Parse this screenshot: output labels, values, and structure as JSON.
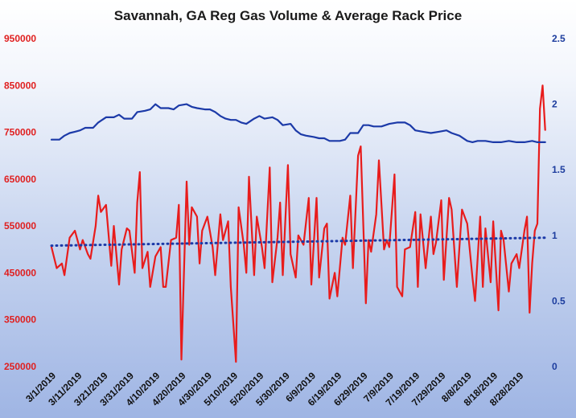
{
  "chart_data": {
    "type": "line",
    "title": "Savannah, GA Reg Gas Volume & Average Rack Price",
    "xlabel": "",
    "ylabel_left": "",
    "ylabel_right": "",
    "ylim_left": [
      250000,
      950000
    ],
    "yticks_left": [
      "950000",
      "850000",
      "750000",
      "650000",
      "550000",
      "450000",
      "350000",
      "250000"
    ],
    "ylim_right": [
      0,
      2.5
    ],
    "yticks_right": [
      "2.5",
      "2",
      "1.5",
      "1",
      "0.5",
      "0"
    ],
    "xticks": [
      "3/1/2019",
      "3/11/2019",
      "3/21/2019",
      "3/31/2019",
      "4/10/2019",
      "4/20/2019",
      "4/30/2019",
      "5/10/2019",
      "5/20/2019",
      "5/30/2019",
      "6/9/2019",
      "6/19/2019",
      "6/29/2019",
      "7/9/2019",
      "7/19/2019",
      "7/29/2019",
      "8/8/2019",
      "8/18/2019",
      "8/28/2019"
    ],
    "x_start": "3/1/2019",
    "x_end": "9/4/2019",
    "background": "gradient",
    "colors": {
      "volume": "#e81c1c",
      "price": "#1c3aa8",
      "trend": "#1c3aa8"
    },
    "series": [
      {
        "key": "volume",
        "axis": "left",
        "style": "solid",
        "points": [
          [
            "3/1/2019",
            505000
          ],
          [
            "3/3/2019",
            460000
          ],
          [
            "3/5/2019",
            470000
          ],
          [
            "3/6/2019",
            445000
          ],
          [
            "3/8/2019",
            525000
          ],
          [
            "3/10/2019",
            540000
          ],
          [
            "3/12/2019",
            500000
          ],
          [
            "3/13/2019",
            520000
          ],
          [
            "3/15/2019",
            490000
          ],
          [
            "3/16/2019",
            480000
          ],
          [
            "3/18/2019",
            550000
          ],
          [
            "3/19/2019",
            615000
          ],
          [
            "3/20/2019",
            580000
          ],
          [
            "3/22/2019",
            595000
          ],
          [
            "3/24/2019",
            465000
          ],
          [
            "3/25/2019",
            550000
          ],
          [
            "3/27/2019",
            425000
          ],
          [
            "3/28/2019",
            500000
          ],
          [
            "3/30/2019",
            545000
          ],
          [
            "3/31/2019",
            540000
          ],
          [
            "4/2/2019",
            450000
          ],
          [
            "4/3/2019",
            600000
          ],
          [
            "4/4/2019",
            665000
          ],
          [
            "4/5/2019",
            460000
          ],
          [
            "4/7/2019",
            495000
          ],
          [
            "4/8/2019",
            420000
          ],
          [
            "4/10/2019",
            485000
          ],
          [
            "4/12/2019",
            505000
          ],
          [
            "4/13/2019",
            420000
          ],
          [
            "4/14/2019",
            420000
          ],
          [
            "4/16/2019",
            520000
          ],
          [
            "4/18/2019",
            525000
          ],
          [
            "4/19/2019",
            595000
          ],
          [
            "4/20/2019",
            265000
          ],
          [
            "4/22/2019",
            645000
          ],
          [
            "4/23/2019",
            510000
          ],
          [
            "4/24/2019",
            590000
          ],
          [
            "4/26/2019",
            570000
          ],
          [
            "4/27/2019",
            470000
          ],
          [
            "4/28/2019",
            540000
          ],
          [
            "4/30/2019",
            570000
          ],
          [
            "5/2/2019",
            505000
          ],
          [
            "5/3/2019",
            445000
          ],
          [
            "5/5/2019",
            575000
          ],
          [
            "5/6/2019",
            520000
          ],
          [
            "5/8/2019",
            560000
          ],
          [
            "5/9/2019",
            420000
          ],
          [
            "5/11/2019",
            260000
          ],
          [
            "5/12/2019",
            590000
          ],
          [
            "5/14/2019",
            510000
          ],
          [
            "5/15/2019",
            450000
          ],
          [
            "5/16/2019",
            655000
          ],
          [
            "5/18/2019",
            445000
          ],
          [
            "5/19/2019",
            570000
          ],
          [
            "5/21/2019",
            505000
          ],
          [
            "5/22/2019",
            460000
          ],
          [
            "5/24/2019",
            675000
          ],
          [
            "5/25/2019",
            430000
          ],
          [
            "5/27/2019",
            525000
          ],
          [
            "5/28/2019",
            600000
          ],
          [
            "5/29/2019",
            445000
          ],
          [
            "5/31/2019",
            680000
          ],
          [
            "6/1/2019",
            490000
          ],
          [
            "6/3/2019",
            440000
          ],
          [
            "6/4/2019",
            530000
          ],
          [
            "6/6/2019",
            510000
          ],
          [
            "6/8/2019",
            610000
          ],
          [
            "6/9/2019",
            425000
          ],
          [
            "6/11/2019",
            610000
          ],
          [
            "6/12/2019",
            440000
          ],
          [
            "6/14/2019",
            545000
          ],
          [
            "6/15/2019",
            555000
          ],
          [
            "6/16/2019",
            395000
          ],
          [
            "6/18/2019",
            450000
          ],
          [
            "6/19/2019",
            400000
          ],
          [
            "6/21/2019",
            525000
          ],
          [
            "6/22/2019",
            510000
          ],
          [
            "6/24/2019",
            615000
          ],
          [
            "6/25/2019",
            460000
          ],
          [
            "6/27/2019",
            700000
          ],
          [
            "6/28/2019",
            720000
          ],
          [
            "6/30/2019",
            385000
          ],
          [
            "7/1/2019",
            520000
          ],
          [
            "7/2/2019",
            495000
          ],
          [
            "7/4/2019",
            575000
          ],
          [
            "7/5/2019",
            690000
          ],
          [
            "7/7/2019",
            500000
          ],
          [
            "7/8/2019",
            520000
          ],
          [
            "7/9/2019",
            505000
          ],
          [
            "7/11/2019",
            660000
          ],
          [
            "7/12/2019",
            420000
          ],
          [
            "7/14/2019",
            400000
          ],
          [
            "7/15/2019",
            500000
          ],
          [
            "7/17/2019",
            505000
          ],
          [
            "7/19/2019",
            580000
          ],
          [
            "7/20/2019",
            420000
          ],
          [
            "7/21/2019",
            575000
          ],
          [
            "7/23/2019",
            460000
          ],
          [
            "7/25/2019",
            570000
          ],
          [
            "7/26/2019",
            490000
          ],
          [
            "7/27/2019",
            515000
          ],
          [
            "7/29/2019",
            605000
          ],
          [
            "7/30/2019",
            435000
          ],
          [
            "8/1/2019",
            610000
          ],
          [
            "8/2/2019",
            585000
          ],
          [
            "8/4/2019",
            420000
          ],
          [
            "8/5/2019",
            505000
          ],
          [
            "8/6/2019",
            585000
          ],
          [
            "8/8/2019",
            555000
          ],
          [
            "8/10/2019",
            440000
          ],
          [
            "8/11/2019",
            390000
          ],
          [
            "8/13/2019",
            570000
          ],
          [
            "8/14/2019",
            420000
          ],
          [
            "8/15/2019",
            545000
          ],
          [
            "8/17/2019",
            430000
          ],
          [
            "8/18/2019",
            560000
          ],
          [
            "8/20/2019",
            370000
          ],
          [
            "8/21/2019",
            540000
          ],
          [
            "8/22/2019",
            520000
          ],
          [
            "8/24/2019",
            410000
          ],
          [
            "8/25/2019",
            470000
          ],
          [
            "8/27/2019",
            490000
          ],
          [
            "8/28/2019",
            460000
          ],
          [
            "8/30/2019",
            540000
          ],
          [
            "8/31/2019",
            570000
          ],
          [
            "9/1/2019",
            365000
          ],
          [
            "9/2/2019",
            470000
          ],
          [
            "9/3/2019",
            540000
          ],
          [
            "9/4/2019",
            555000
          ],
          [
            "9/5/2019",
            800000
          ],
          [
            "9/6/2019",
            850000
          ],
          [
            "9/7/2019",
            755000
          ]
        ]
      },
      {
        "key": "price",
        "axis": "right",
        "style": "solid",
        "points": [
          [
            "3/1/2019",
            1.73
          ],
          [
            "3/4/2019",
            1.73
          ],
          [
            "3/6/2019",
            1.76
          ],
          [
            "3/8/2019",
            1.78
          ],
          [
            "3/10/2019",
            1.79
          ],
          [
            "3/12/2019",
            1.8
          ],
          [
            "3/14/2019",
            1.82
          ],
          [
            "3/17/2019",
            1.82
          ],
          [
            "3/19/2019",
            1.86
          ],
          [
            "3/22/2019",
            1.9
          ],
          [
            "3/25/2019",
            1.9
          ],
          [
            "3/27/2019",
            1.92
          ],
          [
            "3/29/2019",
            1.89
          ],
          [
            "4/1/2019",
            1.89
          ],
          [
            "4/3/2019",
            1.94
          ],
          [
            "4/6/2019",
            1.95
          ],
          [
            "4/8/2019",
            1.96
          ],
          [
            "4/10/2019",
            2.0
          ],
          [
            "4/12/2019",
            1.97
          ],
          [
            "4/15/2019",
            1.97
          ],
          [
            "4/17/2019",
            1.96
          ],
          [
            "4/19/2019",
            1.99
          ],
          [
            "4/22/2019",
            2.0
          ],
          [
            "4/24/2019",
            1.98
          ],
          [
            "4/26/2019",
            1.97
          ],
          [
            "4/29/2019",
            1.96
          ],
          [
            "5/1/2019",
            1.96
          ],
          [
            "5/3/2019",
            1.94
          ],
          [
            "5/5/2019",
            1.91
          ],
          [
            "5/7/2019",
            1.89
          ],
          [
            "5/9/2019",
            1.88
          ],
          [
            "5/11/2019",
            1.88
          ],
          [
            "5/13/2019",
            1.86
          ],
          [
            "5/15/2019",
            1.85
          ],
          [
            "5/18/2019",
            1.89
          ],
          [
            "5/20/2019",
            1.91
          ],
          [
            "5/22/2019",
            1.89
          ],
          [
            "5/25/2019",
            1.9
          ],
          [
            "5/27/2019",
            1.88
          ],
          [
            "5/29/2019",
            1.84
          ],
          [
            "6/1/2019",
            1.85
          ],
          [
            "6/3/2019",
            1.8
          ],
          [
            "6/5/2019",
            1.77
          ],
          [
            "6/7/2019",
            1.76
          ],
          [
            "6/10/2019",
            1.75
          ],
          [
            "6/12/2019",
            1.74
          ],
          [
            "6/14/2019",
            1.74
          ],
          [
            "6/16/2019",
            1.72
          ],
          [
            "6/18/2019",
            1.72
          ],
          [
            "6/20/2019",
            1.72
          ],
          [
            "6/22/2019",
            1.73
          ],
          [
            "6/24/2019",
            1.78
          ],
          [
            "6/27/2019",
            1.78
          ],
          [
            "6/29/2019",
            1.84
          ],
          [
            "7/1/2019",
            1.84
          ],
          [
            "7/3/2019",
            1.83
          ],
          [
            "7/6/2019",
            1.83
          ],
          [
            "7/9/2019",
            1.85
          ],
          [
            "7/12/2019",
            1.86
          ],
          [
            "7/15/2019",
            1.86
          ],
          [
            "7/17/2019",
            1.84
          ],
          [
            "7/19/2019",
            1.8
          ],
          [
            "7/22/2019",
            1.79
          ],
          [
            "7/25/2019",
            1.78
          ],
          [
            "7/28/2019",
            1.79
          ],
          [
            "7/31/2019",
            1.8
          ],
          [
            "8/2/2019",
            1.78
          ],
          [
            "8/5/2019",
            1.76
          ],
          [
            "8/8/2019",
            1.72
          ],
          [
            "8/10/2019",
            1.71
          ],
          [
            "8/12/2019",
            1.72
          ],
          [
            "8/15/2019",
            1.72
          ],
          [
            "8/18/2019",
            1.71
          ],
          [
            "8/21/2019",
            1.71
          ],
          [
            "8/24/2019",
            1.72
          ],
          [
            "8/27/2019",
            1.71
          ],
          [
            "8/30/2019",
            1.71
          ],
          [
            "9/2/2019",
            1.72
          ],
          [
            "9/4/2019",
            1.71
          ],
          [
            "9/7/2019",
            1.71
          ]
        ]
      },
      {
        "key": "trend",
        "axis": "left",
        "style": "dotted",
        "points": [
          [
            "3/1/2019",
            508000
          ],
          [
            "9/7/2019",
            525000
          ]
        ]
      }
    ]
  }
}
